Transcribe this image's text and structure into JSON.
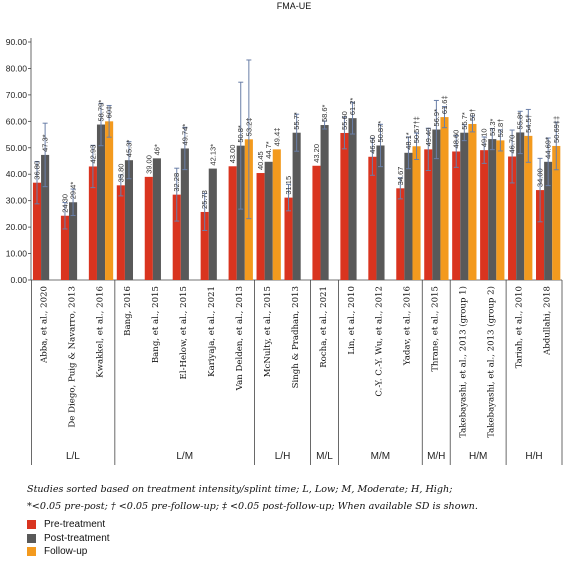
{
  "chart_data": {
    "type": "bar",
    "title": "FMA-UE",
    "ylim": [
      0,
      90
    ],
    "yticks": [
      "0.00",
      "10.00",
      "20.00",
      "30.00",
      "40.00",
      "50.00",
      "60.00",
      "70.00",
      "80.00",
      "90.00"
    ],
    "grid": false,
    "legend_position": "bottom-left",
    "categories": [
      "Abba, et al., 2020",
      "De Diego, Puig & Navarro, 2013",
      "Kwakkel, et al., 2016",
      "Bang, 2016",
      "Bang, et al., 2015",
      "El-Helow, et al., 2015",
      "Kariyaja, et al., 2021",
      "Van Delden, et al., 2013",
      "McNulty, et al., 2015",
      "Singh & Pradhan, 2013",
      "Rocha, et al., 2021",
      "Lin, et al., 2010",
      "C.-Y. C.-Y. Wu, et al., 2012",
      "Yadav, et al., 2016",
      "Thrane, et al., 2015",
      "Takebayashi, et al., 2013 (group 1)",
      "Takebayashi, et al., 2013 (group 2)",
      "Tariah, et al., 2010",
      "Abdullahi, 2018"
    ],
    "series": [
      {
        "name": "Pre-treatment",
        "color": "#d9341f",
        "values": [
          36.8,
          24.3,
          42.93,
          35.8,
          39.0,
          32.28,
          25.73,
          43.0,
          40.45,
          31.15,
          43.2,
          55.6,
          46.6,
          34.67,
          49.4,
          48.6,
          49.1,
          46.7,
          34.0
        ],
        "sd": [
          8,
          5,
          8,
          4,
          0,
          10,
          7,
          0,
          0,
          5,
          0,
          6,
          7,
          4,
          8,
          6,
          5,
          10,
          12
        ]
      },
      {
        "name": "Post-treatment",
        "color": "#595959",
        "values": [
          47.3,
          29.4,
          58.79,
          45.3,
          46.0,
          49.74,
          42.13,
          50.8,
          44.7,
          55.7,
          58.6,
          61.2,
          50.87,
          48.1,
          56.9,
          55.7,
          53.3,
          55.8,
          44.69
        ],
        "sd": [
          12,
          5,
          8,
          7,
          0,
          8,
          0,
          24,
          0,
          7,
          1.5,
          6,
          8,
          6,
          11,
          3,
          4,
          8,
          9
        ]
      },
      {
        "name": "Follow-up",
        "color": "#f39a1e",
        "values": [
          null,
          null,
          60.0,
          null,
          null,
          null,
          null,
          53.2,
          49.4,
          null,
          null,
          null,
          null,
          50.57,
          61.6,
          59.0,
          52.8,
          54.5,
          50.69
        ],
        "sd": [
          0,
          0,
          6,
          0,
          0,
          0,
          0,
          30,
          0,
          0,
          0,
          0,
          0,
          5,
          4,
          3,
          4,
          10,
          9
        ]
      }
    ],
    "value_labels": {
      "pre": [
        "36.80",
        "24.30",
        "42.93",
        "35.80",
        "39.00",
        "32.28",
        "25.73",
        "43.00",
        "40.45",
        "31.15",
        "43.20",
        "55.60",
        "46.60",
        "34.67",
        "49.40",
        "48.60",
        "49.10",
        "46.70",
        "34.00"
      ],
      "post": [
        "47.3*",
        "29.4*",
        "58.79*",
        "45.3*",
        "46*",
        "49.74*",
        "42.13*",
        "50.8*",
        "44.7*",
        "55.7*",
        "58.6*",
        "61.2*",
        "50.87*",
        "48.1*",
        "56.9*",
        "55.7*",
        "53.3*",
        "55.8*",
        "44.69*"
      ],
      "fu": [
        "",
        "",
        "60‡",
        "",
        "",
        "",
        "",
        "53.2‡",
        "49.4‡",
        "",
        "",
        "",
        "",
        "50.57†‡",
        "61.6‡",
        "59†",
        "52.8†",
        "54.5†",
        "50.69‡‡"
      ]
    },
    "groups": [
      {
        "label": "L/L",
        "count": 3
      },
      {
        "label": "L/M",
        "count": 5
      },
      {
        "label": "L/H",
        "count": 2
      },
      {
        "label": "M/L",
        "count": 1
      },
      {
        "label": "M/M",
        "count": 3
      },
      {
        "label": "M/H",
        "count": 1
      },
      {
        "label": "H/M",
        "count": 2
      },
      {
        "label": "H/H",
        "count": 2
      }
    ]
  },
  "notes": {
    "line1": "Studies sorted based on treatment intensity/splint time; L, Low; M, Moderate; H, High;",
    "line2": "*<0.05 pre-post; † <0.05 pre-follow-up; ‡ <0.05 post-follow-up; When available SD is shown."
  },
  "legend": [
    {
      "label": "Pre-treatment",
      "color": "#d9341f"
    },
    {
      "label": "Post-treatment",
      "color": "#595959"
    },
    {
      "label": "Follow-up",
      "color": "#f39a1e"
    }
  ]
}
